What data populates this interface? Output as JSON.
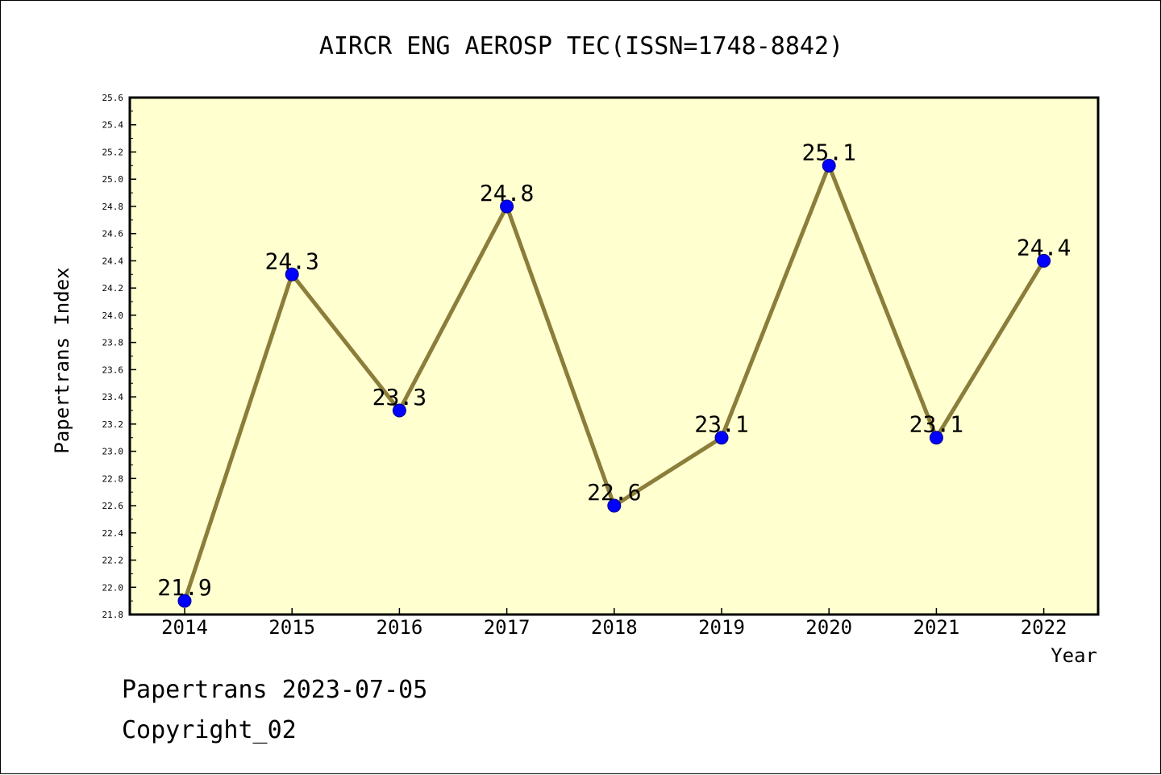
{
  "chart_data": {
    "type": "line",
    "title": "AIRCR ENG AEROSP TEC(ISSN=1748-8842)",
    "xlabel": "Year",
    "ylabel": "Papertrans Index",
    "categories": [
      "2014",
      "2015",
      "2016",
      "2017",
      "2018",
      "2019",
      "2020",
      "2021",
      "2022"
    ],
    "series": [
      {
        "values": [
          21.9,
          24.3,
          23.3,
          24.8,
          22.6,
          23.1,
          25.1,
          23.1,
          24.4
        ],
        "data_labels": [
          "21.9",
          "24.3",
          "23.3",
          "24.8",
          "22.6",
          "23.1",
          "25.1",
          "23.1",
          "24.4"
        ]
      }
    ],
    "ylim": [
      21.8,
      25.6
    ],
    "yticks": [
      "21.8",
      "22.0",
      "22.2",
      "22.4",
      "22.6",
      "22.8",
      "23.0",
      "23.2",
      "23.4",
      "23.6",
      "23.8",
      "24.0",
      "24.2",
      "24.4",
      "24.6",
      "24.8",
      "25.0",
      "25.2",
      "25.4",
      "25.6"
    ],
    "grid": false,
    "colors": {
      "plot_background": "#ffffd0",
      "line": "#8b7d3a",
      "marker": "#0000ff",
      "marker_edge": "#00008b"
    }
  },
  "footer": {
    "line1": "Papertrans 2023-07-05",
    "line2": "Copyright_02"
  }
}
